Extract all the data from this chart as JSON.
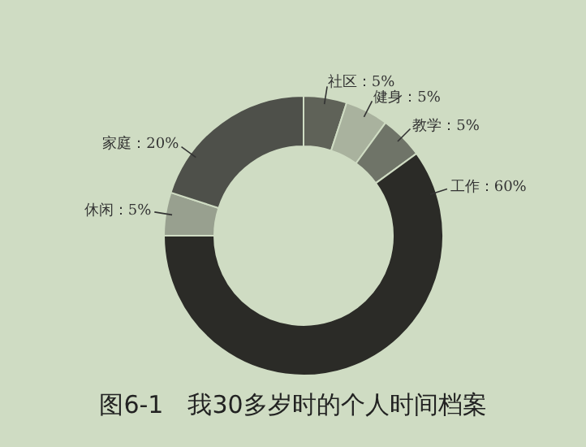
{
  "chart_data": {
    "type": "donut",
    "title": "图6-1　我30多岁时的个人时间档案",
    "categories": [
      "社区",
      "健身",
      "教学",
      "工作",
      "休闲",
      "家庭"
    ],
    "values": [
      5,
      5,
      5,
      60,
      5,
      20
    ],
    "value_labels": [
      "5%",
      "5%",
      "5%",
      "60%",
      "5%",
      "20%"
    ],
    "colors": [
      "#5f6258",
      "#a9b29e",
      "#6f7468",
      "#2b2b27",
      "#98a08f",
      "#4e504a"
    ],
    "legend": false
  }
}
